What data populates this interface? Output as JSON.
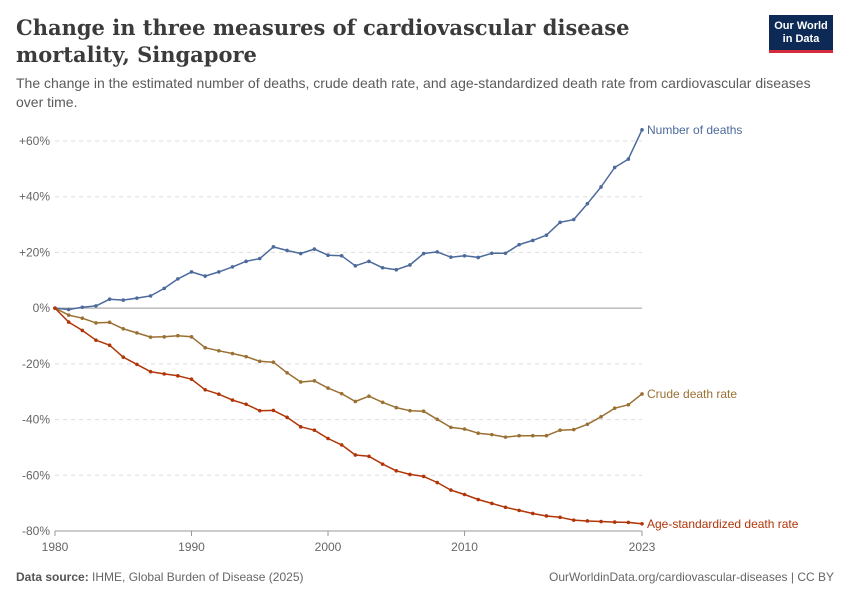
{
  "header": {
    "title": "Change in three measures of cardiovascular disease mortality, Singapore",
    "subtitle": "The change in the estimated number of deaths, crude death rate, and age-standardized death rate from cardiovascular diseases over time.",
    "logo_line1": "Our World",
    "logo_line2": "in Data"
  },
  "footer": {
    "source_label": "Data source:",
    "source_text": "IHME, Global Burden of Disease (2025)",
    "url_text": "OurWorldinData.org/cardiovascular-diseases | CC BY"
  },
  "chart_data": {
    "type": "line",
    "x_range": [
      1980,
      2023
    ],
    "ylim": [
      -80,
      60
    ],
    "y_ticks": [
      60,
      40,
      20,
      0,
      -20,
      -40,
      -60,
      -80
    ],
    "y_tick_labels": [
      "+60%",
      "+40%",
      "+20%",
      "0%",
      "-20%",
      "-40%",
      "-60%",
      "-80%"
    ],
    "x_ticks": [
      1980,
      1990,
      2000,
      2010,
      2023
    ],
    "x_tick_labels": [
      "1980",
      "1990",
      "2000",
      "2010",
      "2023"
    ],
    "grid": "horizontal dashed",
    "legend": "inline labels at line ends",
    "x": [
      1980,
      1981,
      1982,
      1983,
      1984,
      1985,
      1986,
      1987,
      1988,
      1989,
      1990,
      1991,
      1992,
      1993,
      1994,
      1995,
      1996,
      1997,
      1998,
      1999,
      2000,
      2001,
      2002,
      2003,
      2004,
      2005,
      2006,
      2007,
      2008,
      2009,
      2010,
      2011,
      2012,
      2013,
      2014,
      2015,
      2016,
      2017,
      2018,
      2019,
      2020,
      2021,
      2022,
      2023
    ],
    "series": [
      {
        "name": "Number of deaths",
        "color": "#4c6a9c",
        "values": [
          0,
          -0.5,
          0.3,
          0.8,
          3.2,
          2.9,
          3.6,
          4.4,
          7.1,
          10.5,
          13,
          11.5,
          13,
          14.8,
          16.8,
          17.8,
          22,
          20.7,
          19.6,
          21.2,
          19,
          18.8,
          15.2,
          16.8,
          14.5,
          13.8,
          15.5,
          19.6,
          20.2,
          18.3,
          18.8,
          18.2,
          19.7,
          19.7,
          22.8,
          24.3,
          26.2,
          30.8,
          31.8,
          37.5,
          43.5,
          50.5,
          53.5,
          64
        ]
      },
      {
        "name": "Crude death rate",
        "color": "#9a7033",
        "values": [
          0,
          -2.5,
          -3.6,
          -5.3,
          -5.1,
          -7.4,
          -8.9,
          -10.4,
          -10.3,
          -9.9,
          -10.3,
          -14.2,
          -15.3,
          -16.3,
          -17.4,
          -19.1,
          -19.4,
          -23.2,
          -26.5,
          -26.1,
          -28.7,
          -30.7,
          -33.5,
          -31.6,
          -33.8,
          -35.7,
          -36.8,
          -37,
          -39.9,
          -42.8,
          -43.4,
          -44.9,
          -45.4,
          -46.3,
          -45.8,
          -45.8,
          -45.8,
          -43.8,
          -43.6,
          -41.7,
          -39,
          -35.9,
          -34.7,
          -30.8
        ]
      },
      {
        "name": "Age-standardized death rate",
        "color": "#b13507",
        "values": [
          0,
          -5,
          -8,
          -11.5,
          -13.3,
          -17.6,
          -20.2,
          -22.8,
          -23.6,
          -24.3,
          -25.5,
          -29.3,
          -30.9,
          -33,
          -34.5,
          -36.8,
          -36.7,
          -39.2,
          -42.6,
          -43.8,
          -46.8,
          -49.1,
          -52.7,
          -53.2,
          -56,
          -58.4,
          -59.7,
          -60.4,
          -62.6,
          -65.3,
          -66.9,
          -68.7,
          -70.1,
          -71.5,
          -72.6,
          -73.7,
          -74.6,
          -75.1,
          -76.1,
          -76.4,
          -76.6,
          -76.8,
          -76.9,
          -77.4
        ]
      }
    ]
  }
}
